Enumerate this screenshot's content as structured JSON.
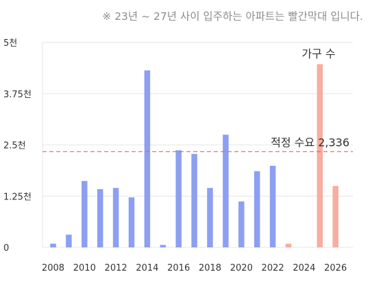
{
  "note": "※ 23년 ~ 27년 사이 입주하는 아파트는 빨간막대 입니다.",
  "chart_data": {
    "type": "bar",
    "title": "",
    "xlabel": "",
    "ylabel": "",
    "ylim": [
      0,
      5000
    ],
    "y_ticks": [
      {
        "value": 0,
        "label": "0"
      },
      {
        "value": 1250,
        "label": "1.25천"
      },
      {
        "value": 2500,
        "label": "2.5천"
      },
      {
        "value": 3750,
        "label": "3.75천"
      },
      {
        "value": 5000,
        "label": "5천"
      }
    ],
    "x_tick_labels": [
      "2008",
      "2010",
      "2012",
      "2014",
      "2016",
      "2018",
      "2020",
      "2022",
      "2024",
      "2026"
    ],
    "categories": [
      "2008",
      "2009",
      "2010",
      "2011",
      "2012",
      "2013",
      "2014",
      "2015",
      "2016",
      "2017",
      "2018",
      "2019",
      "2020",
      "2021",
      "2022",
      "2023",
      "2024",
      "2025",
      "2026"
    ],
    "values": [
      90,
      310,
      1620,
      1420,
      1450,
      1220,
      4320,
      60,
      2370,
      2280,
      1450,
      2750,
      1120,
      1860,
      1990,
      90,
      0,
      4470,
      1500
    ],
    "bar_colors": [
      "#8c9ff2",
      "#8c9ff2",
      "#8c9ff2",
      "#8c9ff2",
      "#8c9ff2",
      "#8c9ff2",
      "#8c9ff2",
      "#8c9ff2",
      "#8c9ff2",
      "#8c9ff2",
      "#8c9ff2",
      "#8c9ff2",
      "#8c9ff2",
      "#8c9ff2",
      "#8c9ff2",
      "#f7ad9f",
      "#f7ad9f",
      "#f7ad9f",
      "#f7ad9f"
    ],
    "series_label": "가구 수",
    "reference_line": {
      "value": 2336,
      "label": "적정 수요 2,336",
      "color": "#e8615a"
    },
    "grid": true
  }
}
